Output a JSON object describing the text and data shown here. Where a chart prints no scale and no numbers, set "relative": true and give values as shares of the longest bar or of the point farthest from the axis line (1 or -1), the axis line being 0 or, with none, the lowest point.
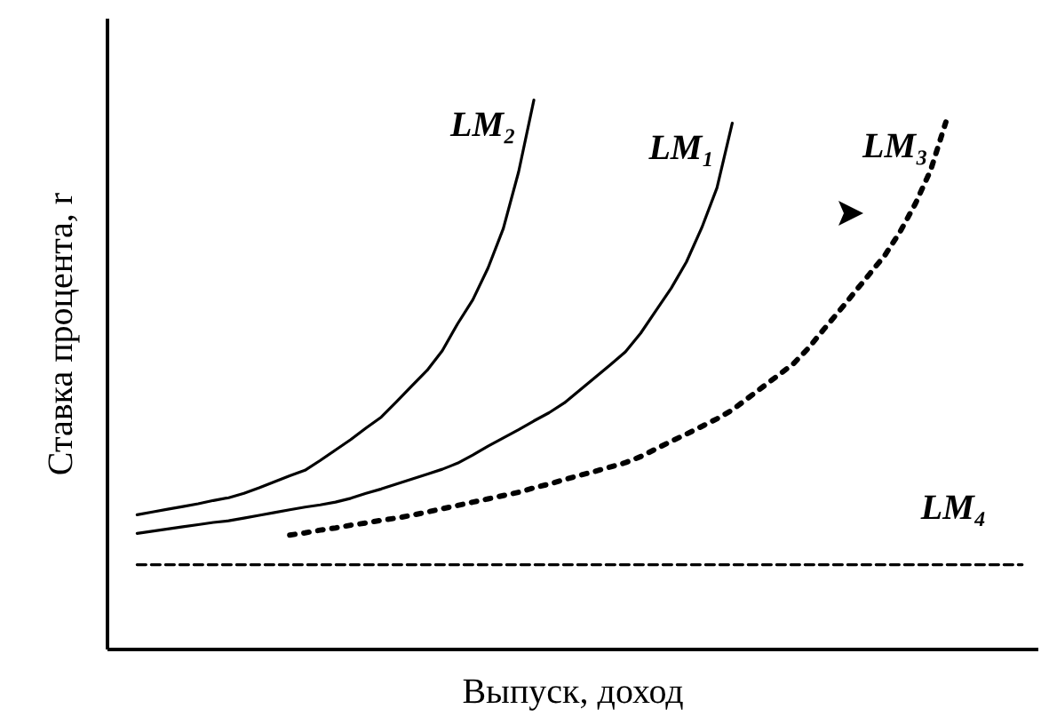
{
  "chart_data": {
    "type": "line",
    "relative": true,
    "xlabel": "Выпуск, доход",
    "ylabel": "Ставка процента, r",
    "grid": false,
    "marker": "none",
    "categories": [
      null,
      null,
      null,
      null,
      null,
      null,
      null,
      null,
      null,
      null,
      null,
      null,
      null,
      null,
      null,
      null,
      null,
      null,
      null,
      null,
      null,
      null,
      null,
      null,
      null,
      null,
      null,
      null,
      null,
      null,
      null,
      null,
      null,
      null,
      null,
      null,
      null,
      null,
      null,
      null,
      null,
      null,
      null,
      null,
      null,
      null,
      null,
      null,
      null,
      null,
      null,
      null,
      null,
      null,
      null,
      null,
      null,
      null,
      null,
      null
    ],
    "series": [
      {
        "name": "LM₂",
        "color": "#000000",
        "line_style": "solid",
        "values": [
          null,
          0.244,
          0.249,
          0.254,
          0.259,
          0.264,
          0.27,
          0.275,
          0.283,
          0.293,
          0.304,
          0.315,
          0.325,
          0.343,
          0.362,
          0.381,
          0.402,
          0.422,
          0.45,
          0.479,
          0.507,
          0.543,
          0.592,
          0.636,
          0.694,
          0.766,
          0.869,
          1.0,
          null,
          null,
          null,
          null,
          null,
          null,
          null,
          null,
          null,
          null,
          null,
          null,
          null,
          null,
          null,
          null,
          null,
          null,
          null,
          null,
          null,
          null,
          null,
          null,
          null,
          null,
          null,
          null,
          null,
          null,
          null,
          null
        ]
      },
      {
        "name": "LM₁",
        "color": "#000000",
        "line_style": "solid",
        "values": [
          null,
          0.21,
          0.214,
          0.218,
          0.222,
          0.226,
          0.23,
          0.233,
          0.238,
          0.243,
          0.248,
          0.253,
          0.258,
          0.262,
          0.267,
          0.274,
          0.283,
          0.291,
          0.3,
          0.309,
          0.318,
          0.327,
          0.338,
          0.353,
          0.369,
          0.384,
          0.399,
          0.415,
          0.43,
          0.448,
          0.471,
          0.494,
          0.517,
          0.541,
          0.575,
          0.616,
          0.657,
          0.705,
          0.767,
          0.84,
          0.958,
          null,
          null,
          null,
          null,
          null,
          null,
          null,
          null,
          null,
          null,
          null,
          null,
          null,
          null,
          null,
          null,
          null,
          null,
          null
        ]
      },
      {
        "name": "LM₃",
        "color": "#000000",
        "line_style": "dotted",
        "values": [
          null,
          null,
          null,
          null,
          null,
          null,
          null,
          null,
          null,
          null,
          null,
          0.207,
          0.211,
          0.216,
          0.22,
          0.225,
          0.229,
          0.234,
          0.238,
          0.243,
          0.249,
          0.255,
          0.261,
          0.267,
          0.273,
          0.279,
          0.285,
          0.293,
          0.3,
          0.308,
          0.316,
          0.323,
          0.331,
          0.339,
          0.35,
          0.364,
          0.378,
          0.391,
          0.405,
          0.419,
          0.435,
          0.456,
          0.477,
          0.498,
          0.519,
          0.548,
          0.582,
          0.615,
          0.649,
          0.683,
          0.717,
          0.76,
          0.811,
          0.872,
          0.96,
          null,
          null,
          null,
          null,
          null
        ]
      },
      {
        "name": "LM₄",
        "color": "#000000",
        "line_style": "dashed",
        "values": [
          null,
          0.153,
          0.153,
          0.153,
          0.153,
          0.153,
          0.153,
          0.153,
          0.153,
          0.153,
          0.153,
          0.153,
          0.153,
          0.153,
          0.153,
          0.153,
          0.153,
          0.153,
          0.153,
          0.153,
          0.153,
          0.153,
          0.153,
          0.153,
          0.153,
          0.153,
          0.153,
          0.153,
          0.153,
          0.153,
          0.153,
          0.153,
          0.153,
          0.153,
          0.153,
          0.153,
          0.153,
          0.153,
          0.153,
          0.153,
          0.153,
          0.153,
          0.153,
          0.153,
          0.153,
          0.153,
          0.153,
          0.153,
          0.153,
          0.153,
          0.153,
          0.153,
          0.153,
          0.153,
          0.153,
          0.153,
          0.153,
          0.153,
          0.153,
          0.153
        ]
      }
    ]
  }
}
